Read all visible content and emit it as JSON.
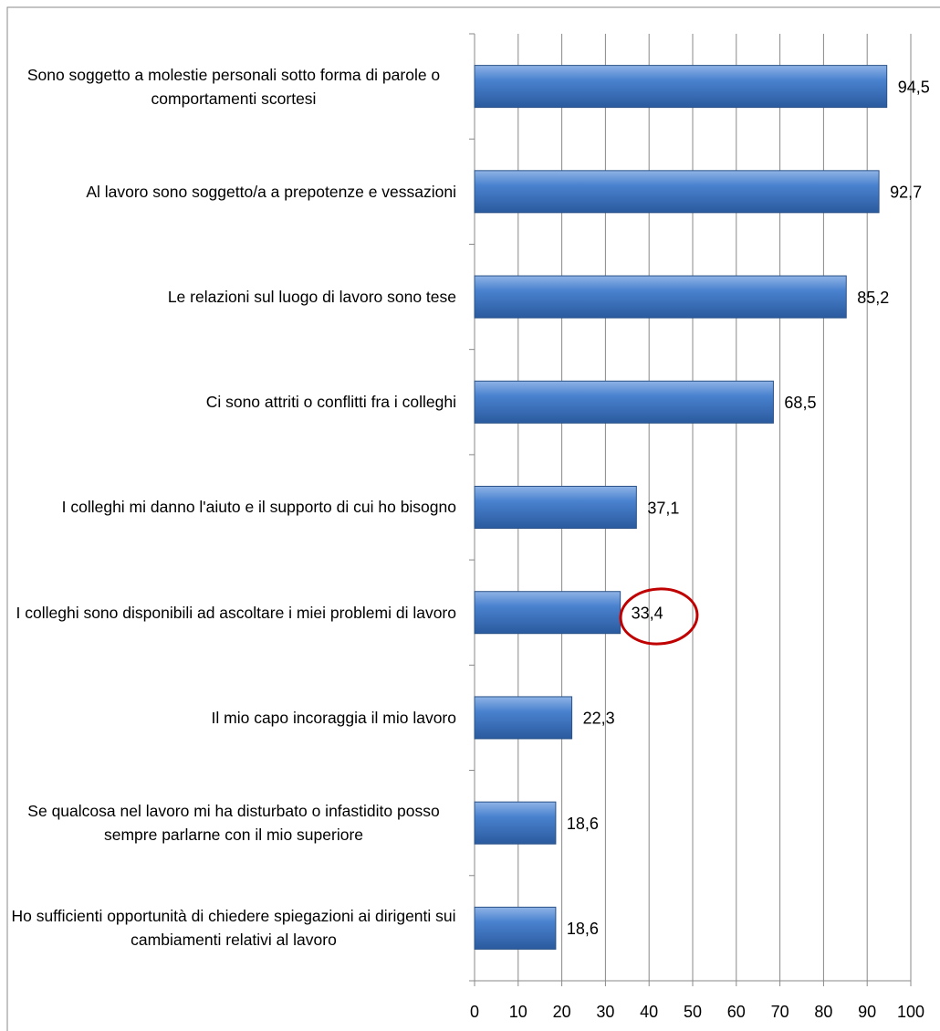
{
  "chart_data": {
    "type": "bar",
    "orientation": "horizontal",
    "categories": [
      "Sono soggetto a molestie personali sotto forma di parole o comportamenti scortesi",
      "Al lavoro sono soggetto/a a prepotenze e vessazioni",
      "Le relazioni sul luogo di lavoro sono tese",
      "Ci sono attriti o conflitti fra i colleghi",
      "I colleghi mi danno l'aiuto e il supporto di cui ho bisogno",
      "I colleghi sono disponibili ad ascoltare i miei problemi di lavoro",
      "Il mio capo incoraggia il mio lavoro",
      "Se qualcosa nel lavoro mi ha disturbato o infastidito posso sempre parlarne con il mio superiore",
      "Ho sufficienti opportunità  di chiedere spiegazioni ai dirigenti sui cambiamenti relativi al lavoro"
    ],
    "values": [
      94.5,
      92.7,
      85.2,
      68.5,
      37.1,
      33.4,
      22.3,
      18.6,
      18.6
    ],
    "value_labels": [
      "94,5",
      "92,7",
      "85,2",
      "68,5",
      "37,1",
      "33,4",
      "22,3",
      "18,6",
      "18,6"
    ],
    "color": "#3f78c4",
    "xlim": [
      0,
      100
    ],
    "xticks": [
      0,
      10,
      20,
      30,
      40,
      50,
      60,
      70,
      80,
      90,
      100
    ],
    "grid": true
  }
}
